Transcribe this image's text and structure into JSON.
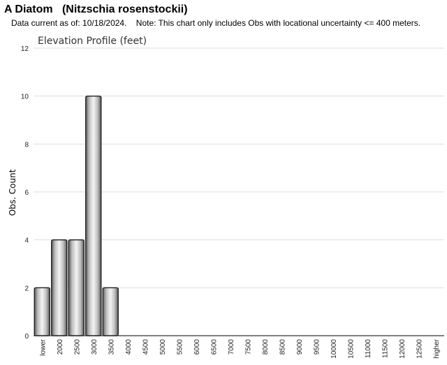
{
  "page": {
    "title": "A Diatom   (Nitzschia rosenstockii)",
    "subtitle": "Data current as of: 10/18/2024.    Note: This chart only includes Obs with locational uncertainty <= 400 meters."
  },
  "chart_data": {
    "type": "bar",
    "title": "Elevation Profile (feet)",
    "xlabel": "",
    "ylabel": "Obs. Count",
    "categories": [
      "lower",
      "2000",
      "2500",
      "3000",
      "3500",
      "4000",
      "4500",
      "5000",
      "5500",
      "6000",
      "6500",
      "7000",
      "7500",
      "8000",
      "8500",
      "9000",
      "9500",
      "10000",
      "10500",
      "11000",
      "11500",
      "12000",
      "12500",
      "higher"
    ],
    "values": [
      2,
      4,
      4,
      10,
      2,
      0,
      0,
      0,
      0,
      0,
      0,
      0,
      0,
      0,
      0,
      0,
      0,
      0,
      0,
      0,
      0,
      0,
      0,
      0
    ],
    "ylim": [
      0,
      12
    ],
    "yticks": [
      0,
      2,
      4,
      6,
      8,
      10,
      12
    ],
    "grid": true,
    "bar_color": "gradient-gray",
    "colors": {
      "bar_edge": "#222222",
      "bar_light": "#f2f2f2",
      "bar_dark": "#6e6e6e",
      "grid": "#dddddd"
    }
  }
}
